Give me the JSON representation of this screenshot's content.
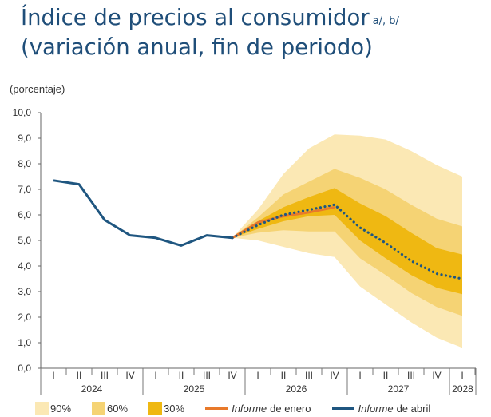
{
  "title_line1": "Índice de precios al consumidor",
  "title_sup": "a/, b/",
  "title_line2": "(variación anual, fin de periodo)",
  "chart_data": {
    "type": "line",
    "ylabel": "(porcentaje)",
    "ylim": [
      0,
      10
    ],
    "yticks": [
      "0,0",
      "1,0",
      "2,0",
      "3,0",
      "4,0",
      "5,0",
      "6,0",
      "7,0",
      "8,0",
      "9,0",
      "10,0"
    ],
    "quarters": [
      "I",
      "II",
      "III",
      "IV",
      "I",
      "II",
      "III",
      "IV",
      "I",
      "II",
      "III",
      "IV",
      "I",
      "II",
      "III",
      "IV",
      "I"
    ],
    "years": [
      "2024",
      "2025",
      "2026",
      "2027",
      "2028"
    ],
    "x": [
      "2024-I",
      "2024-II",
      "2024-III",
      "2024-IV",
      "2025-I",
      "2025-II",
      "2025-III",
      "2025-IV",
      "2026-I",
      "2026-II",
      "2026-III",
      "2026-IV",
      "2027-I",
      "2027-II",
      "2027-III",
      "2027-IV",
      "2028-I"
    ],
    "fan_x": [
      "2025-IV",
      "2026-I",
      "2026-II",
      "2026-III",
      "2026-IV",
      "2027-I",
      "2027-II",
      "2027-III",
      "2027-IV",
      "2028-I"
    ],
    "fan": [
      {
        "name": "90%",
        "color": "#fbe8b4",
        "upper": [
          5.1,
          6.2,
          7.6,
          8.6,
          9.15,
          9.1,
          8.95,
          8.5,
          7.95,
          7.5
        ],
        "lower": [
          5.1,
          5.0,
          4.75,
          4.5,
          4.35,
          3.2,
          2.5,
          1.8,
          1.2,
          0.8
        ]
      },
      {
        "name": "60%",
        "color": "#f5d374",
        "upper": [
          5.1,
          5.9,
          6.8,
          7.3,
          7.8,
          7.45,
          7.0,
          6.4,
          5.85,
          5.55
        ],
        "lower": [
          5.1,
          5.3,
          5.4,
          5.35,
          5.35,
          4.3,
          3.65,
          2.95,
          2.4,
          2.05
        ]
      },
      {
        "name": "30%",
        "color": "#efb812",
        "upper": [
          5.1,
          5.75,
          6.3,
          6.7,
          7.05,
          6.45,
          5.95,
          5.3,
          4.7,
          4.45
        ],
        "lower": [
          5.1,
          5.45,
          5.75,
          5.95,
          6.0,
          5.0,
          4.3,
          3.65,
          3.15,
          2.9
        ]
      }
    ],
    "series": [
      {
        "name": "Informe de enero",
        "color": "#e8792a",
        "style": "solid",
        "x": [
          "2025-IV",
          "2026-I",
          "2026-II",
          "2026-III",
          "2026-IV"
        ],
        "values": [
          5.1,
          5.7,
          5.95,
          6.1,
          6.3
        ]
      },
      {
        "name": "Informe de abril",
        "color": "#1f5680",
        "style": "solid+dotted",
        "solid_until": "2025-IV",
        "values": [
          7.35,
          7.2,
          5.8,
          5.2,
          5.1,
          4.8,
          5.2,
          5.1,
          5.6,
          6.0,
          6.2,
          6.4,
          5.5,
          4.9,
          4.2,
          3.7,
          3.5
        ]
      }
    ]
  },
  "legend": [
    {
      "kind": "swatch",
      "label": "90%",
      "color": "#fbe8b4"
    },
    {
      "kind": "swatch",
      "label": "60%",
      "color": "#f5d374"
    },
    {
      "kind": "swatch",
      "label": "30%",
      "color": "#efb812"
    },
    {
      "kind": "line",
      "label_italic": "Informe",
      "label_rest": "de enero",
      "color": "#e8792a"
    },
    {
      "kind": "line",
      "label_italic": "Informe",
      "label_rest": "de abril",
      "color": "#1f5680"
    }
  ]
}
